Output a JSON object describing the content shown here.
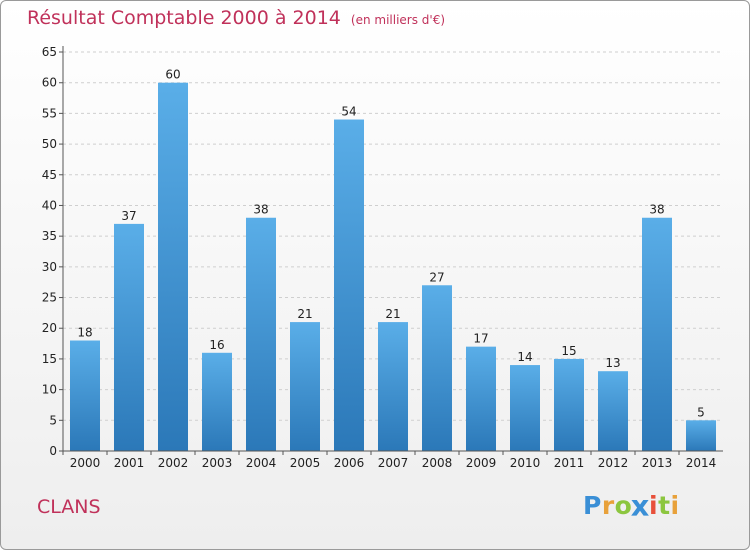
{
  "chart_data": {
    "type": "bar",
    "title": "Résultat Comptable 2000 à 2014",
    "subtitle": "(en milliers d'€)",
    "categories": [
      "2000",
      "2001",
      "2002",
      "2003",
      "2004",
      "2005",
      "2006",
      "2007",
      "2008",
      "2009",
      "2010",
      "2011",
      "2012",
      "2013",
      "2014"
    ],
    "values": [
      18,
      37,
      60,
      16,
      38,
      21,
      54,
      21,
      27,
      17,
      14,
      15,
      13,
      38,
      5
    ],
    "ylim": [
      0,
      65
    ],
    "yticks": [
      0,
      5,
      10,
      15,
      20,
      25,
      30,
      35,
      40,
      45,
      50,
      55,
      60,
      65
    ],
    "xlabel": "",
    "ylabel": "",
    "grid": true,
    "bar_color_top": "#5aaee8",
    "bar_color_bottom": "#2b78b8"
  },
  "footer": {
    "commune": "CLANS"
  },
  "logo": {
    "letters": [
      "P",
      "r",
      "o",
      "x",
      "i",
      "t",
      "i"
    ],
    "colors": [
      "#3a8fd6",
      "#e8a13a",
      "#8cc63f",
      "#3a8fd6",
      "#e8503a",
      "#8cc63f",
      "#e8a13a"
    ]
  },
  "colors": {
    "title": "#c0315a",
    "grid": "#cfcfcf"
  }
}
